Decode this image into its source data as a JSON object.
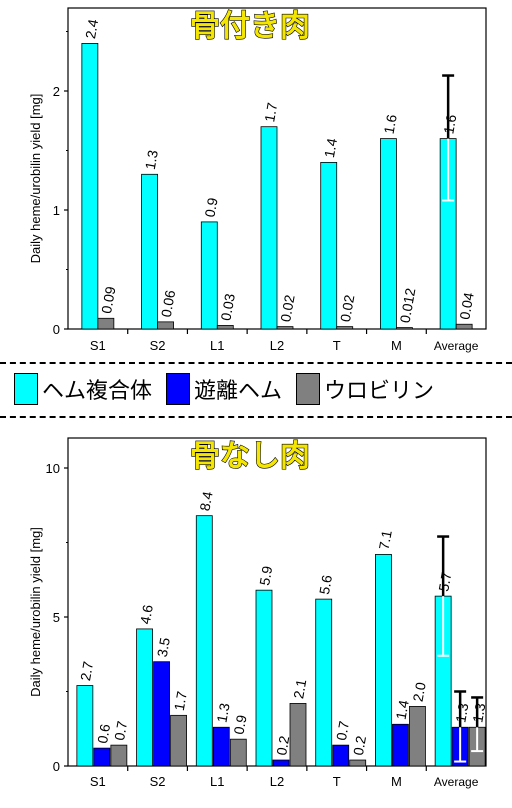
{
  "legend": [
    {
      "label": "ヘム複合体",
      "color": "#00ffff"
    },
    {
      "label": "遊離ヘム",
      "color": "#0000ff"
    },
    {
      "label": "ウロビリン",
      "color": "#808080"
    }
  ],
  "chart_data": [
    {
      "type": "bar",
      "title": "骨付き肉",
      "ylabel": "Daily heme/urobilin yield [mg]",
      "categories": [
        "S1",
        "S2",
        "L1",
        "L2",
        "T",
        "M",
        "Average"
      ],
      "ylim": [
        0,
        2.6
      ],
      "yticks": [
        "0",
        "1",
        "2"
      ],
      "series": [
        {
          "name": "ヘム複合体",
          "color": "#00ffff",
          "values": [
            2.4,
            1.3,
            0.9,
            1.7,
            1.4,
            1.6,
            1.6
          ],
          "labels": [
            "2.4",
            "1.3",
            "0.9",
            "1.7",
            "1.4",
            "1.6",
            "1.6"
          ]
        },
        {
          "name": "ウロビリン",
          "color": "#808080",
          "values": [
            0.09,
            0.06,
            0.03,
            0.02,
            0.02,
            0.012,
            0.04
          ],
          "labels": [
            "0.09",
            "0.06",
            "0.03",
            "0.02",
            "0.02",
            "0.012",
            "0.04"
          ]
        }
      ],
      "error_bars": [
        {
          "series": 0,
          "category": 6,
          "low": 1.08,
          "high": 2.13
        }
      ]
    },
    {
      "type": "bar",
      "title": "骨なし肉",
      "ylabel": "Daily heme/urobilin yield [mg]",
      "categories": [
        "S1",
        "S2",
        "L1",
        "L2",
        "T",
        "M",
        "Average"
      ],
      "ylim": [
        0,
        11
      ],
      "yticks": [
        "0",
        "5",
        "10"
      ],
      "series": [
        {
          "name": "ヘム複合体",
          "color": "#00ffff",
          "values": [
            2.7,
            4.6,
            8.4,
            5.9,
            5.6,
            7.1,
            5.7
          ],
          "labels": [
            "2.7",
            "4.6",
            "8.4",
            "5.9",
            "5.6",
            "7.1",
            "5.7"
          ]
        },
        {
          "name": "遊離ヘム",
          "color": "#0000ff",
          "values": [
            0.6,
            3.5,
            1.3,
            0.2,
            0.7,
            1.4,
            1.3
          ],
          "labels": [
            "0.6",
            "3.5",
            "1.3",
            "0.2",
            "0.7",
            "1.4",
            "1.3"
          ]
        },
        {
          "name": "ウロビリン",
          "color": "#808080",
          "values": [
            0.7,
            1.7,
            0.9,
            2.1,
            0.2,
            2.0,
            1.3
          ],
          "labels": [
            "0.7",
            "1.7",
            "0.9",
            "2.1",
            "0.2",
            "2.0",
            "1.3"
          ]
        }
      ],
      "error_bars": [
        {
          "series": 0,
          "category": 6,
          "low": 3.7,
          "high": 7.7
        },
        {
          "series": 1,
          "category": 6,
          "low": 0.15,
          "high": 2.5
        },
        {
          "series": 2,
          "category": 6,
          "low": 0.5,
          "high": 2.3
        }
      ]
    }
  ]
}
